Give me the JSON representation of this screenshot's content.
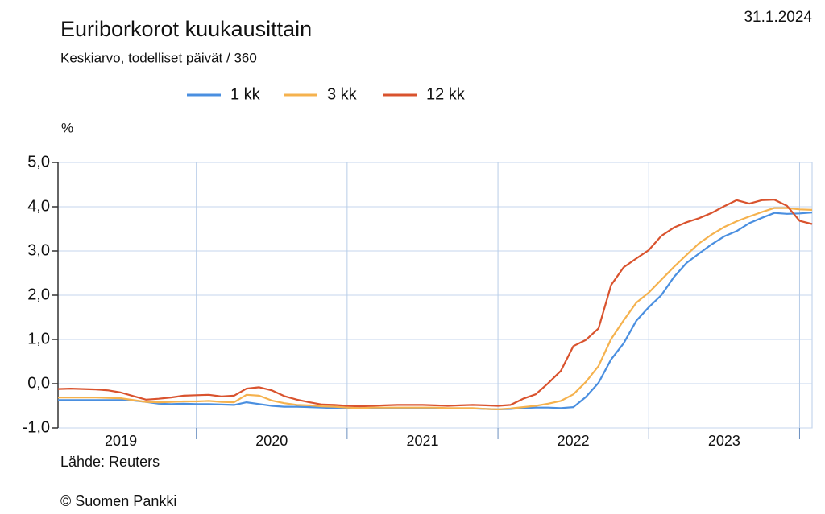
{
  "chart_data": {
    "type": "line",
    "title": "Euriborkorot kuukausittain",
    "subtitle": "Keskiarvo, todelliset päivät / 360",
    "date": "31.1.2024",
    "y_label": "%",
    "source": "Lähde: Reuters",
    "copyright": "© Suomen Pankki",
    "x": [
      2019.083,
      2019.167,
      2019.25,
      2019.333,
      2019.417,
      2019.5,
      2019.583,
      2019.667,
      2019.75,
      2019.833,
      2019.917,
      2020,
      2020.083,
      2020.167,
      2020.25,
      2020.333,
      2020.417,
      2020.5,
      2020.583,
      2020.667,
      2020.75,
      2020.833,
      2020.917,
      2021,
      2021.083,
      2021.167,
      2021.25,
      2021.333,
      2021.417,
      2021.5,
      2021.583,
      2021.667,
      2021.75,
      2021.833,
      2021.917,
      2022,
      2022.083,
      2022.167,
      2022.25,
      2022.333,
      2022.417,
      2022.5,
      2022.583,
      2022.667,
      2022.75,
      2022.833,
      2022.917,
      2023,
      2023.083,
      2023.167,
      2023.25,
      2023.333,
      2023.417,
      2023.5,
      2023.583,
      2023.667,
      2023.75,
      2023.833,
      2023.917,
      2024,
      2024.083
    ],
    "xlim": [
      2019.083,
      2024.083
    ],
    "xticks": [
      2020,
      2021,
      2022,
      2023,
      2024
    ],
    "xlabels": [
      {
        "value": 2019.5,
        "label": "2019"
      },
      {
        "value": 2020.5,
        "label": "2020"
      },
      {
        "value": 2021.5,
        "label": "2021"
      },
      {
        "value": 2022.5,
        "label": "2022"
      },
      {
        "value": 2023.5,
        "label": "2023"
      }
    ],
    "ylim": [
      -1,
      5
    ],
    "yticks": [
      {
        "value": -1,
        "label": "-1,0"
      },
      {
        "value": 0,
        "label": "0,0"
      },
      {
        "value": 1,
        "label": "1,0"
      },
      {
        "value": 2,
        "label": "2,0"
      },
      {
        "value": 3,
        "label": "3,0"
      },
      {
        "value": 4,
        "label": "4,0"
      },
      {
        "value": 5,
        "label": "5,0"
      }
    ],
    "grid": true,
    "legend": "top",
    "series": [
      {
        "name": "1 kk",
        "color": "#4a8fe0",
        "values": [
          -0.37,
          -0.37,
          -0.37,
          -0.37,
          -0.37,
          -0.37,
          -0.38,
          -0.41,
          -0.45,
          -0.46,
          -0.45,
          -0.46,
          -0.46,
          -0.47,
          -0.48,
          -0.42,
          -0.46,
          -0.5,
          -0.52,
          -0.52,
          -0.53,
          -0.54,
          -0.55,
          -0.55,
          -0.56,
          -0.55,
          -0.55,
          -0.56,
          -0.56,
          -0.55,
          -0.56,
          -0.56,
          -0.56,
          -0.56,
          -0.57,
          -0.58,
          -0.57,
          -0.55,
          -0.54,
          -0.54,
          -0.55,
          -0.53,
          -0.3,
          0.02,
          0.55,
          0.91,
          1.42,
          1.73,
          2.0,
          2.41,
          2.73,
          2.94,
          3.15,
          3.33,
          3.45,
          3.63,
          3.75,
          3.86,
          3.84,
          3.85,
          3.87
        ]
      },
      {
        "name": "3 kk",
        "color": "#f5b24e",
        "values": [
          -0.31,
          -0.31,
          -0.31,
          -0.31,
          -0.32,
          -0.33,
          -0.37,
          -0.41,
          -0.42,
          -0.41,
          -0.4,
          -0.4,
          -0.39,
          -0.41,
          -0.42,
          -0.25,
          -0.27,
          -0.38,
          -0.44,
          -0.48,
          -0.49,
          -0.51,
          -0.52,
          -0.54,
          -0.55,
          -0.54,
          -0.54,
          -0.54,
          -0.54,
          -0.54,
          -0.54,
          -0.55,
          -0.55,
          -0.55,
          -0.57,
          -0.58,
          -0.56,
          -0.53,
          -0.5,
          -0.45,
          -0.39,
          -0.24,
          0.04,
          0.4,
          1.01,
          1.43,
          1.83,
          2.06,
          2.35,
          2.64,
          2.91,
          3.17,
          3.37,
          3.54,
          3.67,
          3.78,
          3.88,
          3.97,
          3.97,
          3.94,
          3.93
        ]
      },
      {
        "name": "12 kk",
        "color": "#d9532e",
        "values": [
          -0.12,
          -0.11,
          -0.12,
          -0.13,
          -0.15,
          -0.2,
          -0.28,
          -0.36,
          -0.34,
          -0.31,
          -0.27,
          -0.26,
          -0.25,
          -0.29,
          -0.27,
          -0.11,
          -0.08,
          -0.15,
          -0.28,
          -0.36,
          -0.42,
          -0.47,
          -0.48,
          -0.5,
          -0.51,
          -0.5,
          -0.49,
          -0.48,
          -0.48,
          -0.48,
          -0.49,
          -0.5,
          -0.49,
          -0.48,
          -0.49,
          -0.5,
          -0.48,
          -0.34,
          -0.24,
          0.01,
          0.29,
          0.85,
          0.99,
          1.25,
          2.23,
          2.63,
          2.83,
          3.02,
          3.34,
          3.53,
          3.65,
          3.74,
          3.86,
          4.01,
          4.15,
          4.07,
          4.15,
          4.16,
          4.02,
          3.68,
          3.61
        ]
      }
    ]
  }
}
